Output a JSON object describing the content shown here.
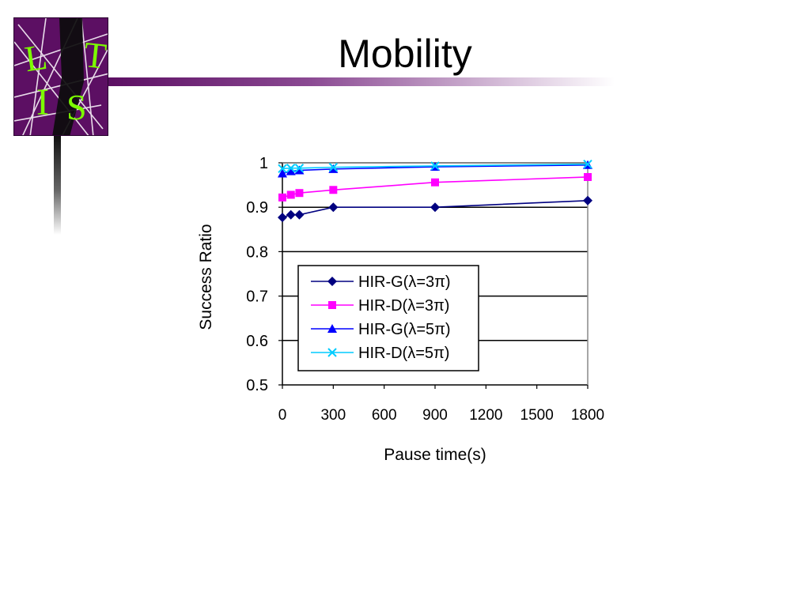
{
  "slide": {
    "title": "Mobility",
    "logo_letters": [
      "L",
      "T",
      "I",
      "S"
    ],
    "colors": {
      "purple": "#5c0f63",
      "logo_green": "#7cfc00"
    }
  },
  "chart_data": {
    "type": "line",
    "title": "",
    "xlabel": "Pause time(s)",
    "ylabel": "Success Ratio",
    "xlim": [
      0,
      1800
    ],
    "ylim": [
      0.5,
      1.0
    ],
    "xticks": [
      "0",
      "300",
      "600",
      "900",
      "1200",
      "1500",
      "1800"
    ],
    "xtick_values": [
      0,
      300,
      600,
      900,
      1200,
      1500,
      1800
    ],
    "yticks": [
      "0.5",
      "0.6",
      "0.7",
      "0.8",
      "0.9",
      "1"
    ],
    "ytick_values": [
      0.5,
      0.6,
      0.7,
      0.8,
      0.9,
      1.0
    ],
    "grid": "horizontal",
    "legend_position": "lower-left",
    "series": [
      {
        "name": "HIR-G(λ=3π)",
        "marker": "diamond",
        "color": "#000080",
        "x": [
          0,
          50,
          100,
          300,
          900,
          1800
        ],
        "y": [
          0.877,
          0.883,
          0.883,
          0.9,
          0.9,
          0.915
        ]
      },
      {
        "name": "HIR-D(λ=3π)",
        "marker": "square",
        "color": "#ff00ff",
        "x": [
          0,
          50,
          100,
          300,
          900,
          1800
        ],
        "y": [
          0.922,
          0.928,
          0.932,
          0.939,
          0.956,
          0.968
        ]
      },
      {
        "name": "HIR-G(λ=5π)",
        "marker": "triangle",
        "color": "#0000ff",
        "x": [
          0,
          50,
          100,
          300,
          900,
          1800
        ],
        "y": [
          0.976,
          0.981,
          0.983,
          0.986,
          0.991,
          0.995
        ]
      },
      {
        "name": "HIR-D(λ=5π)",
        "marker": "x",
        "color": "#00ccff",
        "x": [
          0,
          50,
          100,
          300,
          900,
          1800
        ],
        "y": [
          0.987,
          0.988,
          0.988,
          0.99,
          0.993,
          0.997
        ]
      }
    ]
  }
}
